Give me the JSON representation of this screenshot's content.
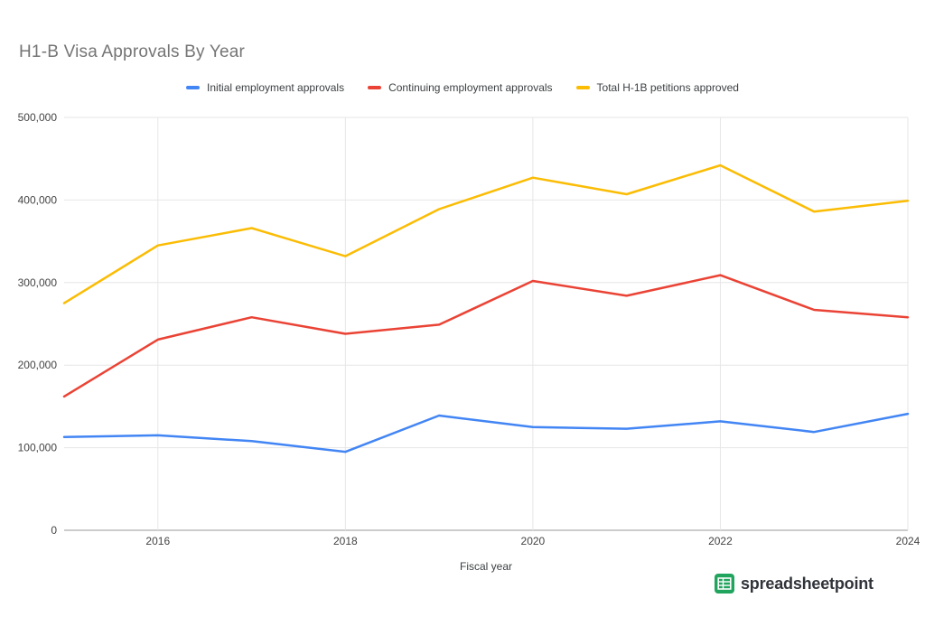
{
  "chart_data": {
    "type": "line",
    "title": "H1-B Visa Approvals By Year",
    "xlabel": "Fiscal year",
    "ylabel": "",
    "x": [
      2015,
      2016,
      2017,
      2018,
      2019,
      2020,
      2021,
      2022,
      2023,
      2024
    ],
    "xlim": [
      2015,
      2024
    ],
    "ylim": [
      0,
      500000
    ],
    "grid": true,
    "legend_position": "top",
    "series": [
      {
        "name": "Initial employment approvals",
        "color": "#4285F4",
        "values": [
          113000,
          115000,
          108000,
          95000,
          139000,
          125000,
          123000,
          132000,
          119000,
          141000
        ]
      },
      {
        "name": "Continuing employment approvals",
        "color": "#EA4335",
        "values": [
          162000,
          231000,
          258000,
          238000,
          249000,
          302000,
          284000,
          309000,
          267000,
          258000
        ]
      },
      {
        "name": "Total H-1B petitions approved",
        "color": "#FBBC04",
        "values": [
          275000,
          345000,
          366000,
          332000,
          389000,
          427000,
          407000,
          442000,
          386000,
          399000
        ]
      }
    ],
    "yticks": [
      {
        "v": 0,
        "label": "0"
      },
      {
        "v": 100000,
        "label": "100,000"
      },
      {
        "v": 200000,
        "label": "200,000"
      },
      {
        "v": 300000,
        "label": "300,000"
      },
      {
        "v": 400000,
        "label": "400,000"
      },
      {
        "v": 500000,
        "label": "500,000"
      }
    ],
    "xticks": [
      {
        "v": 2016,
        "label": "2016"
      },
      {
        "v": 2018,
        "label": "2018"
      },
      {
        "v": 2020,
        "label": "2020"
      },
      {
        "v": 2022,
        "label": "2022"
      },
      {
        "v": 2024,
        "label": "2024"
      }
    ],
    "colors": {
      "grid": "#e6e6e6",
      "axis": "#999999",
      "tick": "#444444",
      "title": "#757575"
    }
  },
  "footer": {
    "brand": "spreadsheetpoint",
    "brand_color": "#21a45d"
  }
}
